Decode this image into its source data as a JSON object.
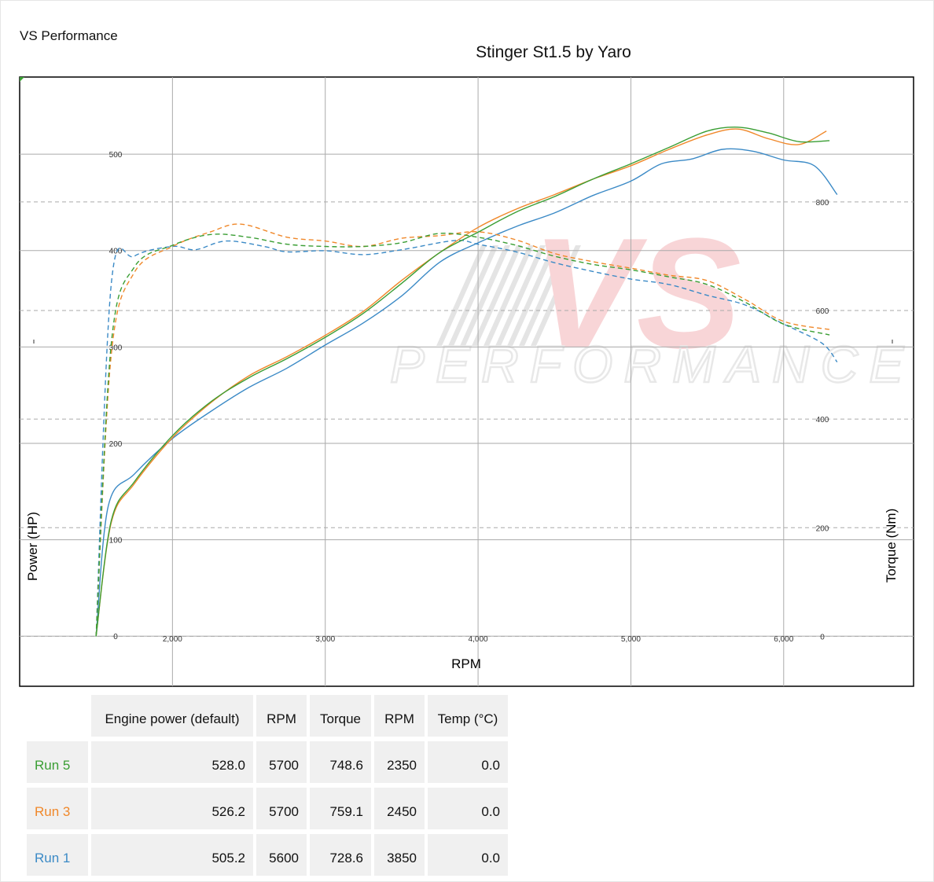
{
  "header": {
    "brand": "VS Performance",
    "title": "Stinger St1.5 by Yaro"
  },
  "watermark": {
    "main": "VS",
    "sub": "PERFORMANCE"
  },
  "chart_data": {
    "type": "line",
    "title": "Stinger St1.5 by Yaro",
    "xlabel": "RPM",
    "ylabel": "Power (HP)",
    "y2label": "Torque (Nm)",
    "xlim": [
      1000,
      6850
    ],
    "ylim": [
      -52,
      580
    ],
    "y2lim": [
      -92,
      1030
    ],
    "x_ticks": [
      2000,
      3000,
      4000,
      5000,
      6000
    ],
    "x_tick_labels": [
      "2,000",
      "3,000",
      "4,000",
      "5,000",
      "6,000"
    ],
    "y_ticks": [
      0,
      100,
      200,
      300,
      400,
      500
    ],
    "y2_ticks": [
      0,
      200,
      400,
      600,
      800
    ],
    "grid": true,
    "series": [
      {
        "name": "Run 5",
        "color": "#3a9e34",
        "power": [
          [
            1500,
            0
          ],
          [
            1600,
            120
          ],
          [
            1750,
            160
          ],
          [
            2000,
            208
          ],
          [
            2250,
            243
          ],
          [
            2500,
            268
          ],
          [
            2750,
            288
          ],
          [
            3000,
            310
          ],
          [
            3250,
            335
          ],
          [
            3500,
            366
          ],
          [
            3750,
            398
          ],
          [
            4000,
            419
          ],
          [
            4250,
            440
          ],
          [
            4500,
            456
          ],
          [
            4750,
            474
          ],
          [
            5000,
            490
          ],
          [
            5250,
            507
          ],
          [
            5500,
            524
          ],
          [
            5700,
            528
          ],
          [
            5900,
            522
          ],
          [
            6100,
            513
          ],
          [
            6300,
            514
          ]
        ],
        "torque": [
          [
            1500,
            0
          ],
          [
            1600,
            540
          ],
          [
            1750,
            680
          ],
          [
            2000,
            720
          ],
          [
            2250,
            740
          ],
          [
            2500,
            735
          ],
          [
            2750,
            722
          ],
          [
            3000,
            718
          ],
          [
            3250,
            718
          ],
          [
            3500,
            725
          ],
          [
            3750,
            742
          ],
          [
            4000,
            735
          ],
          [
            4250,
            720
          ],
          [
            4500,
            700
          ],
          [
            4750,
            685
          ],
          [
            5000,
            675
          ],
          [
            5250,
            662
          ],
          [
            5500,
            648
          ],
          [
            5750,
            615
          ],
          [
            6000,
            575
          ],
          [
            6300,
            555
          ]
        ]
      },
      {
        "name": "Run 3",
        "color": "#f0882a",
        "power": [
          [
            1500,
            0
          ],
          [
            1600,
            118
          ],
          [
            1750,
            158
          ],
          [
            2000,
            206
          ],
          [
            2250,
            242
          ],
          [
            2500,
            270
          ],
          [
            2750,
            290
          ],
          [
            3000,
            312
          ],
          [
            3250,
            337
          ],
          [
            3500,
            369
          ],
          [
            3750,
            398
          ],
          [
            4000,
            424
          ],
          [
            4250,
            443
          ],
          [
            4500,
            458
          ],
          [
            4750,
            474
          ],
          [
            5000,
            488
          ],
          [
            5250,
            505
          ],
          [
            5500,
            520
          ],
          [
            5700,
            526
          ],
          [
            5900,
            516
          ],
          [
            6100,
            510
          ],
          [
            6280,
            524
          ]
        ],
        "torque": [
          [
            1500,
            0
          ],
          [
            1600,
            520
          ],
          [
            1750,
            670
          ],
          [
            2000,
            718
          ],
          [
            2250,
            745
          ],
          [
            2450,
            759
          ],
          [
            2750,
            735
          ],
          [
            3000,
            728
          ],
          [
            3250,
            718
          ],
          [
            3500,
            733
          ],
          [
            3750,
            738
          ],
          [
            4000,
            745
          ],
          [
            4250,
            730
          ],
          [
            4500,
            705
          ],
          [
            4750,
            690
          ],
          [
            5000,
            678
          ],
          [
            5250,
            665
          ],
          [
            5500,
            655
          ],
          [
            5750,
            620
          ],
          [
            6000,
            580
          ],
          [
            6300,
            565
          ]
        ]
      },
      {
        "name": "Run 1",
        "color": "#3b8ac6",
        "power": [
          [
            1500,
            0
          ],
          [
            1580,
            135
          ],
          [
            1750,
            168
          ],
          [
            2000,
            205
          ],
          [
            2250,
            233
          ],
          [
            2500,
            258
          ],
          [
            2750,
            278
          ],
          [
            3000,
            302
          ],
          [
            3250,
            325
          ],
          [
            3500,
            353
          ],
          [
            3750,
            388
          ],
          [
            4000,
            408
          ],
          [
            4250,
            425
          ],
          [
            4500,
            439
          ],
          [
            4750,
            457
          ],
          [
            5000,
            472
          ],
          [
            5200,
            490
          ],
          [
            5400,
            495
          ],
          [
            5600,
            505
          ],
          [
            5800,
            503
          ],
          [
            6000,
            494
          ],
          [
            6200,
            488
          ],
          [
            6350,
            458
          ]
        ],
        "torque": [
          [
            1500,
            0
          ],
          [
            1600,
            650
          ],
          [
            1750,
            700
          ],
          [
            2000,
            718
          ],
          [
            2150,
            712
          ],
          [
            2350,
            728
          ],
          [
            2600,
            718
          ],
          [
            2750,
            708
          ],
          [
            3000,
            710
          ],
          [
            3250,
            703
          ],
          [
            3500,
            712
          ],
          [
            3850,
            729
          ],
          [
            4000,
            722
          ],
          [
            4250,
            708
          ],
          [
            4500,
            688
          ],
          [
            4750,
            672
          ],
          [
            5000,
            658
          ],
          [
            5250,
            648
          ],
          [
            5500,
            628
          ],
          [
            5750,
            610
          ],
          [
            6000,
            575
          ],
          [
            6250,
            540
          ],
          [
            6350,
            505
          ]
        ]
      }
    ]
  },
  "table": {
    "headers": [
      "Engine power (default)",
      "RPM",
      "Torque",
      "RPM",
      "Temp (°C)"
    ],
    "rows": [
      {
        "run": "Run 5",
        "color": "#3a9e34",
        "power": "528.0",
        "rpm1": "5700",
        "torque": "748.6",
        "rpm2": "2350",
        "temp": "0.0"
      },
      {
        "run": "Run 3",
        "color": "#f0882a",
        "power": "526.2",
        "rpm1": "5700",
        "torque": "759.1",
        "rpm2": "2450",
        "temp": "0.0"
      },
      {
        "run": "Run 1",
        "color": "#3b8ac6",
        "power": "505.2",
        "rpm1": "5600",
        "torque": "728.6",
        "rpm2": "3850",
        "temp": "0.0"
      }
    ]
  }
}
